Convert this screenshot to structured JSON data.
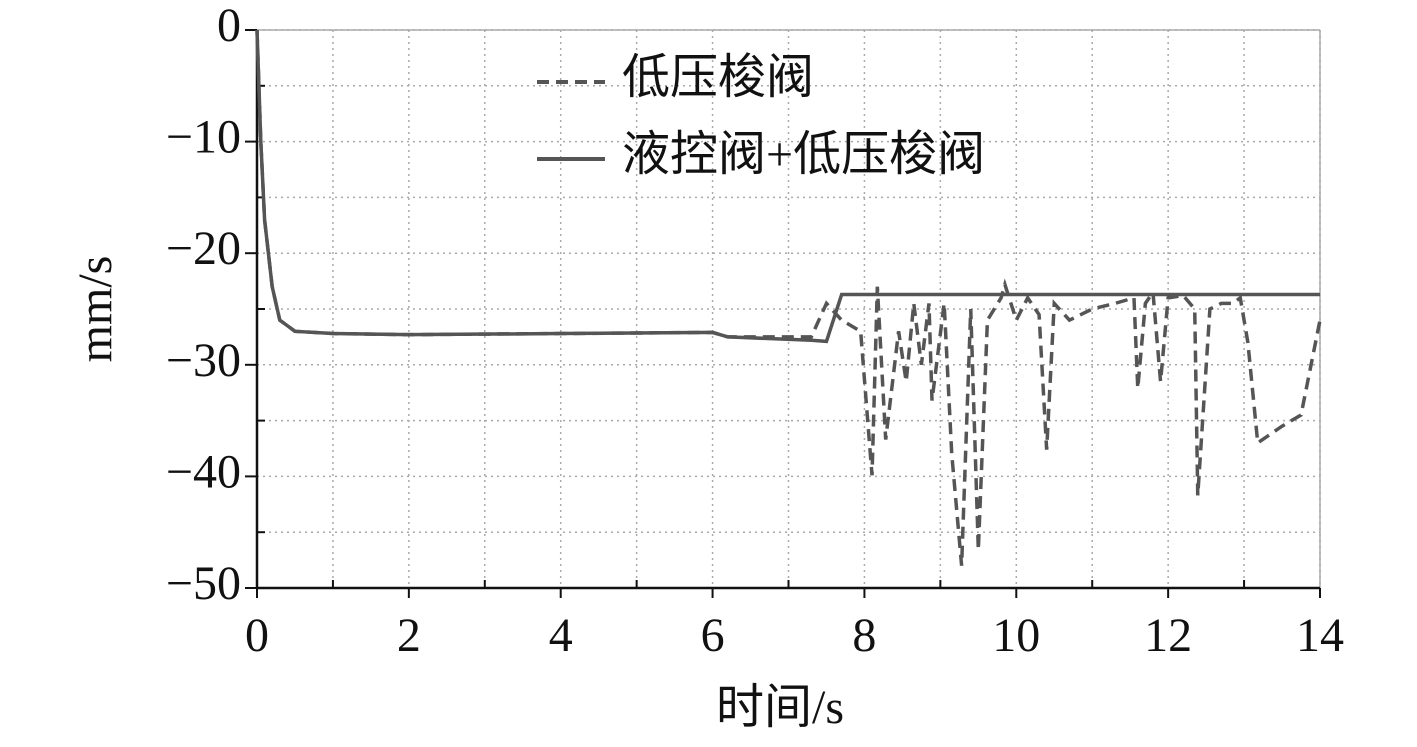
{
  "chart_data": {
    "type": "line",
    "xlabel": "时间/s",
    "ylabel": "mm/s",
    "xlim": [
      0,
      14
    ],
    "xticks": [
      0,
      2,
      4,
      6,
      8,
      10,
      12,
      14
    ],
    "xminorticks": [
      1,
      3,
      5,
      7,
      9,
      11,
      13
    ],
    "ylim": [
      -50,
      0
    ],
    "yticks": [
      {
        "value": -50,
        "label": "−50"
      },
      {
        "value": -40,
        "label": "−40"
      },
      {
        "value": -30,
        "label": "−30"
      },
      {
        "value": -20,
        "label": "−20"
      },
      {
        "value": -10,
        "label": "−10"
      },
      0
    ],
    "yminorticks": [
      -45,
      -35,
      -25,
      -15,
      -5
    ],
    "grid": true,
    "legend": "upper center",
    "series": [
      {
        "name": "低压梭阀",
        "color": "#555555",
        "style": "dashed",
        "x": [
          0,
          0.05,
          0.1,
          0.2,
          0.3,
          0.5,
          1,
          2,
          4,
          6,
          6.2,
          7.3,
          7.5,
          7.7,
          7.95,
          8.1,
          8.17,
          8.28,
          8.45,
          8.55,
          8.65,
          8.75,
          8.85,
          8.89,
          9.05,
          9.15,
          9.28,
          9.4,
          9.5,
          9.62,
          9.8,
          9.85,
          10,
          10.15,
          10.3,
          10.4,
          10.5,
          10.7,
          11,
          11.3,
          11.55,
          11.6,
          11.7,
          11.8,
          11.9,
          12,
          12.2,
          12.35,
          12.39,
          12.55,
          12.7,
          12.85,
          12.95,
          13.05,
          13.18,
          13.5,
          13.75,
          14
        ],
        "values": [
          0,
          -10,
          -17,
          -23,
          -26,
          -27,
          -27.2,
          -27.3,
          -27.2,
          -27.1,
          -27.5,
          -27.5,
          -24.5,
          -26,
          -27,
          -39.9,
          -23,
          -36.7,
          -27,
          -31.5,
          -24.5,
          -30,
          -24.5,
          -33.2,
          -24.5,
          -38,
          -48,
          -25,
          -46.6,
          -26,
          -24,
          -22.8,
          -26,
          -24,
          -25.5,
          -37.6,
          -24.5,
          -26,
          -25,
          -24.5,
          -24,
          -32.1,
          -24.5,
          -23.5,
          -31.5,
          -24,
          -23.8,
          -25,
          -41.7,
          -25,
          -24.5,
          -24.5,
          -24,
          -28,
          -37,
          -35.5,
          -34.5,
          -26
        ]
      },
      {
        "name": "液控阀+低压梭阀",
        "color": "#555555",
        "style": "solid",
        "x": [
          0,
          0.05,
          0.1,
          0.2,
          0.3,
          0.5,
          1,
          2,
          4,
          6,
          6.2,
          7.3,
          7.5,
          7.7,
          14
        ],
        "values": [
          0,
          -10,
          -17,
          -23,
          -26,
          -27,
          -27.2,
          -27.3,
          -27.2,
          -27.1,
          -27.5,
          -27.8,
          -27.9,
          -23.7,
          -23.7
        ]
      }
    ]
  }
}
